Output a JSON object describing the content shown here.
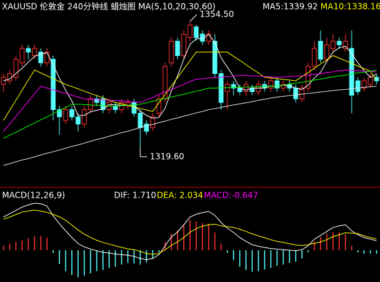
{
  "chart_data": [
    {
      "type": "candlestick",
      "title": "XAUUSD 伦敦金 240分钟线  蜡烛图 MA(5,10,20,30,60)",
      "ylim": [
        1309,
        1357
      ],
      "up_color": "#ff3232",
      "down_color": "#54fcfc",
      "open": [
        1337,
        1338,
        1339,
        1343,
        1347,
        1345,
        1346,
        1343,
        1344,
        1330,
        1327,
        1330,
        1328,
        1326,
        1330,
        1333,
        1333,
        1330,
        1331,
        1330,
        1331,
        1332,
        1329,
        1326,
        1325,
        1329,
        1333,
        1343,
        1349,
        1345,
        1350,
        1353,
        1351,
        1349,
        1349,
        1340,
        1335,
        1337,
        1336,
        1335,
        1336,
        1335,
        1337,
        1336,
        1338,
        1336,
        1337,
        1336,
        1333,
        1336,
        1342,
        1349,
        1344,
        1347,
        1349,
        1347,
        1347,
        1338,
        1336,
        1337,
        1339
      ],
      "high": [
        1340,
        1341,
        1345,
        1348,
        1348,
        1348,
        1347,
        1347,
        1345,
        1331,
        1331,
        1331,
        1329,
        1331,
        1334,
        1334,
        1334,
        1333,
        1332,
        1333,
        1333,
        1333,
        1330,
        1327,
        1329,
        1334,
        1343,
        1350,
        1350,
        1352,
        1354.5,
        1353.5,
        1352,
        1352,
        1351,
        1341,
        1338,
        1338,
        1337,
        1338,
        1337,
        1338,
        1338,
        1339,
        1339,
        1338,
        1338,
        1337,
        1337,
        1343,
        1349,
        1352,
        1350,
        1351,
        1350,
        1351,
        1352,
        1339,
        1339,
        1340,
        1340
      ],
      "low": [
        1335,
        1337,
        1338,
        1342,
        1344,
        1344,
        1342,
        1342,
        1327,
        1323,
        1326,
        1327,
        1324,
        1325,
        1329,
        1331,
        1329,
        1329,
        1329,
        1329,
        1330,
        1328,
        1319.6,
        1323,
        1324,
        1328,
        1332,
        1342,
        1344,
        1344,
        1349,
        1349,
        1348,
        1348,
        1339,
        1330,
        1330,
        1334,
        1334,
        1334,
        1334,
        1334,
        1335,
        1335,
        1335,
        1335,
        1335,
        1332,
        1332,
        1335,
        1341,
        1343,
        1343,
        1346,
        1347,
        1346,
        1329,
        1334,
        1335,
        1336,
        1337
      ],
      "close": [
        1339,
        1340,
        1344,
        1347,
        1346,
        1347,
        1343,
        1346,
        1330,
        1328,
        1330,
        1328,
        1326,
        1330,
        1333,
        1332,
        1330,
        1332,
        1330,
        1332,
        1332,
        1329,
        1325,
        1324,
        1328,
        1333,
        1342,
        1349,
        1345,
        1351,
        1353.5,
        1350,
        1349,
        1351,
        1340,
        1332,
        1337,
        1336,
        1335,
        1337,
        1335,
        1337,
        1336,
        1338,
        1336,
        1337,
        1336,
        1333,
        1336,
        1342,
        1347,
        1344,
        1348,
        1349,
        1348,
        1349,
        1334,
        1335,
        1338,
        1339,
        1338
      ],
      "annotations": [
        {
          "value": 1354.5,
          "label": "1354.50"
        },
        {
          "value": 1319.6,
          "label": "1319.60"
        }
      ],
      "series": [
        {
          "name": "MA5:1339.92",
          "color": "#ffffff",
          "values": [
            1338,
            1338.5,
            1340,
            1341.5,
            1343.2,
            1344.8,
            1345.4,
            1345.8,
            1342.4,
            1338.8,
            1335.4,
            1332.4,
            1328.4,
            1328.4,
            1329.4,
            1329.8,
            1330.2,
            1331.4,
            1331.4,
            1331.2,
            1331.2,
            1331,
            1329.6,
            1328.4,
            1327.6,
            1327.8,
            1330.4,
            1335.2,
            1339.4,
            1344,
            1348.1,
            1349.7,
            1349.7,
            1350.9,
            1348.7,
            1344.4,
            1341.8,
            1339.2,
            1336,
            1335.4,
            1336,
            1336,
            1336,
            1336.6,
            1336.4,
            1336.8,
            1336.6,
            1336,
            1335.6,
            1336.8,
            1338.8,
            1340.4,
            1343.4,
            1346,
            1347.2,
            1347.6,
            1345.6,
            1343,
            1340.8,
            1339,
            1339.92
          ]
        },
        {
          "name": "MA10:1338.16",
          "color": "#ffff00",
          "values": [
            1327,
            1329.8,
            1332.6,
            1335.4,
            1338.2,
            1341,
            1340.2,
            1339.4,
            1338.6,
            1337.8,
            1337,
            1336.4,
            1335.8,
            1335.1,
            1334.5,
            1333.9,
            1333.3,
            1332.6,
            1332,
            1331.6,
            1331.2,
            1330.8,
            1330.3,
            1329.9,
            1329.5,
            1331.9,
            1334.2,
            1336.6,
            1338.9,
            1341.3,
            1343.6,
            1346,
            1346,
            1346,
            1346,
            1346,
            1346,
            1344.8,
            1343.7,
            1342.5,
            1341.3,
            1340.2,
            1339,
            1338.8,
            1338.6,
            1338.4,
            1338.2,
            1338,
            1339.2,
            1340.3,
            1341.5,
            1342.7,
            1343.8,
            1345,
            1344.3,
            1343.6,
            1342.9,
            1342.1,
            1341.4,
            1340.7,
            1338.16
          ]
        },
        {
          "color": "#ff00ff",
          "values": [
            1324,
            1326,
            1328.1,
            1330.2,
            1332.3,
            1334.4,
            1336.5,
            1336,
            1335.5,
            1335,
            1334.5,
            1334,
            1333.5,
            1333,
            1332.9,
            1332.8,
            1332.7,
            1332.6,
            1332.5,
            1332.4,
            1332.3,
            1332.1,
            1332,
            1332.7,
            1333.4,
            1334.2,
            1334.9,
            1335.6,
            1336.3,
            1337,
            1337.8,
            1338.5,
            1338.6,
            1338.8,
            1338.9,
            1339,
            1339.2,
            1339.3,
            1339.5,
            1339.5,
            1339.4,
            1339.3,
            1339.2,
            1339.1,
            1339,
            1339.1,
            1339.2,
            1339.3,
            1339.4,
            1339.5,
            1339.8,
            1340,
            1340.3,
            1340.5,
            1340.8,
            1341,
            1340.9,
            1340.8,
            1340.7,
            1340.6,
            1340.5
          ]
        },
        {
          "color": "#00ff00",
          "values": [
            1322,
            1322.9,
            1323.7,
            1324.6,
            1325.5,
            1326.3,
            1327.2,
            1328,
            1328.9,
            1329.8,
            1330.6,
            1331.5,
            1331.5,
            1331.4,
            1331.3,
            1331.2,
            1331.1,
            1331,
            1331,
            1331.1,
            1331.2,
            1331.3,
            1331.5,
            1331.9,
            1332.3,
            1332.7,
            1333.1,
            1333.5,
            1333.9,
            1334.3,
            1334.7,
            1335.1,
            1335.5,
            1336,
            1336,
            1336.1,
            1336.1,
            1336.2,
            1336.2,
            1336.3,
            1336.3,
            1336.4,
            1336.4,
            1336.5,
            1336.5,
            1336.8,
            1337.1,
            1337.4,
            1337.6,
            1337.9,
            1338.2,
            1338.5,
            1338.8,
            1339.1,
            1339.4,
            1339.6,
            1339.9,
            1340.2,
            1340.4,
            1340.7,
            1341
          ]
        },
        {
          "color": "#dddddd",
          "values": [
            1314.5,
            1315,
            1315.5,
            1316,
            1316.4,
            1316.9,
            1317.4,
            1317.9,
            1318.3,
            1318.8,
            1319.3,
            1319.8,
            1320.2,
            1320.7,
            1321.2,
            1321.7,
            1322.1,
            1322.6,
            1323.1,
            1323.6,
            1324,
            1324.5,
            1325,
            1325.5,
            1325.9,
            1326.4,
            1326.8,
            1327.3,
            1327.7,
            1328.2,
            1328.6,
            1329.1,
            1329.5,
            1330,
            1330.3,
            1330.6,
            1331,
            1331.3,
            1331.6,
            1331.9,
            1332.2,
            1332.6,
            1332.9,
            1333.2,
            1333.5,
            1333.7,
            1333.9,
            1334.1,
            1334.3,
            1334.5,
            1334.7,
            1334.9,
            1335.1,
            1335.3,
            1335.5,
            1335.6,
            1335.8,
            1336,
            1336.2,
            1336.4,
            1336.5
          ]
        }
      ]
    },
    {
      "type": "macd",
      "title": "MACD(12,26,9)",
      "ylim": [
        -5.75,
        10.25
      ],
      "series": [
        {
          "name": "DIF: 1.710",
          "color": "#ffffff",
          "values": [
            6.0,
            6.6,
            7.2,
            7.8,
            8.2,
            8.5,
            8.4,
            8.0,
            6.2,
            4.8,
            3.5,
            2.3,
            1.2,
            0.6,
            0.2,
            -0.1,
            -0.4,
            -0.5,
            -0.7,
            -0.8,
            -0.9,
            -1.1,
            -1.5,
            -1.7,
            -1.5,
            -0.8,
            0.8,
            2.4,
            3.3,
            4.6,
            6.0,
            6.5,
            6.8,
            7.0,
            6.3,
            5.0,
            4.0,
            3.2,
            2.3,
            1.6,
            1.0,
            0.7,
            0.5,
            0.3,
            0.2,
            0.1,
            0.0,
            -0.1,
            0.1,
            0.8,
            2.0,
            2.7,
            3.4,
            4.1,
            4.4,
            4.6,
            3.5,
            2.8,
            2.3,
            2.0,
            1.71
          ]
        },
        {
          "name": "DEA: 2.034",
          "color": "#ffff00",
          "values": [
            5.6,
            6.0,
            6.45,
            6.9,
            7.1,
            7.25,
            7.1,
            6.85,
            6.45,
            6.05,
            5.4,
            4.55,
            3.65,
            2.9,
            2.3,
            1.8,
            1.4,
            1.1,
            0.8,
            0.5,
            0.25,
            0.1,
            -0.2,
            -0.6,
            -0.75,
            -0.6,
            0.05,
            0.9,
            1.5,
            2.3,
            3.25,
            3.9,
            4.35,
            4.6,
            4.7,
            4.4,
            4.25,
            4.1,
            3.8,
            3.4,
            2.95,
            2.6,
            2.25,
            1.9,
            1.6,
            1.4,
            1.15,
            0.95,
            0.85,
            1.0,
            1.25,
            1.5,
            1.9,
            2.45,
            2.8,
            3.15,
            3.1,
            3.0,
            2.6,
            2.3,
            2.034
          ]
        },
        {
          "name": "MACD:-0.647",
          "color": "#ff00ff",
          "up_color": "#ff3232",
          "down_color": "#54fcfc",
          "values": [
            0.8,
            1.2,
            1.5,
            1.8,
            2.2,
            2.5,
            2.6,
            2.3,
            -0.5,
            -2.5,
            -3.8,
            -4.5,
            -4.9,
            -4.6,
            -4.2,
            -3.8,
            -3.6,
            -3.2,
            -3,
            -2.6,
            -2.3,
            -2.4,
            -2.6,
            -2.2,
            -1.5,
            -0.4,
            1.5,
            3,
            3.6,
            4.6,
            5.5,
            5.2,
            4.9,
            4.8,
            3.2,
            1.2,
            -0.5,
            -1.8,
            -3,
            -3.6,
            -3.9,
            -3.8,
            -3.5,
            -3.2,
            -2.8,
            -2.6,
            -2.3,
            -2.1,
            -1.5,
            -0.4,
            1.5,
            2.4,
            3.0,
            3.3,
            3.2,
            2.9,
            0.8,
            -0.4,
            -0.6,
            -0.6,
            -0.647
          ]
        }
      ]
    }
  ]
}
